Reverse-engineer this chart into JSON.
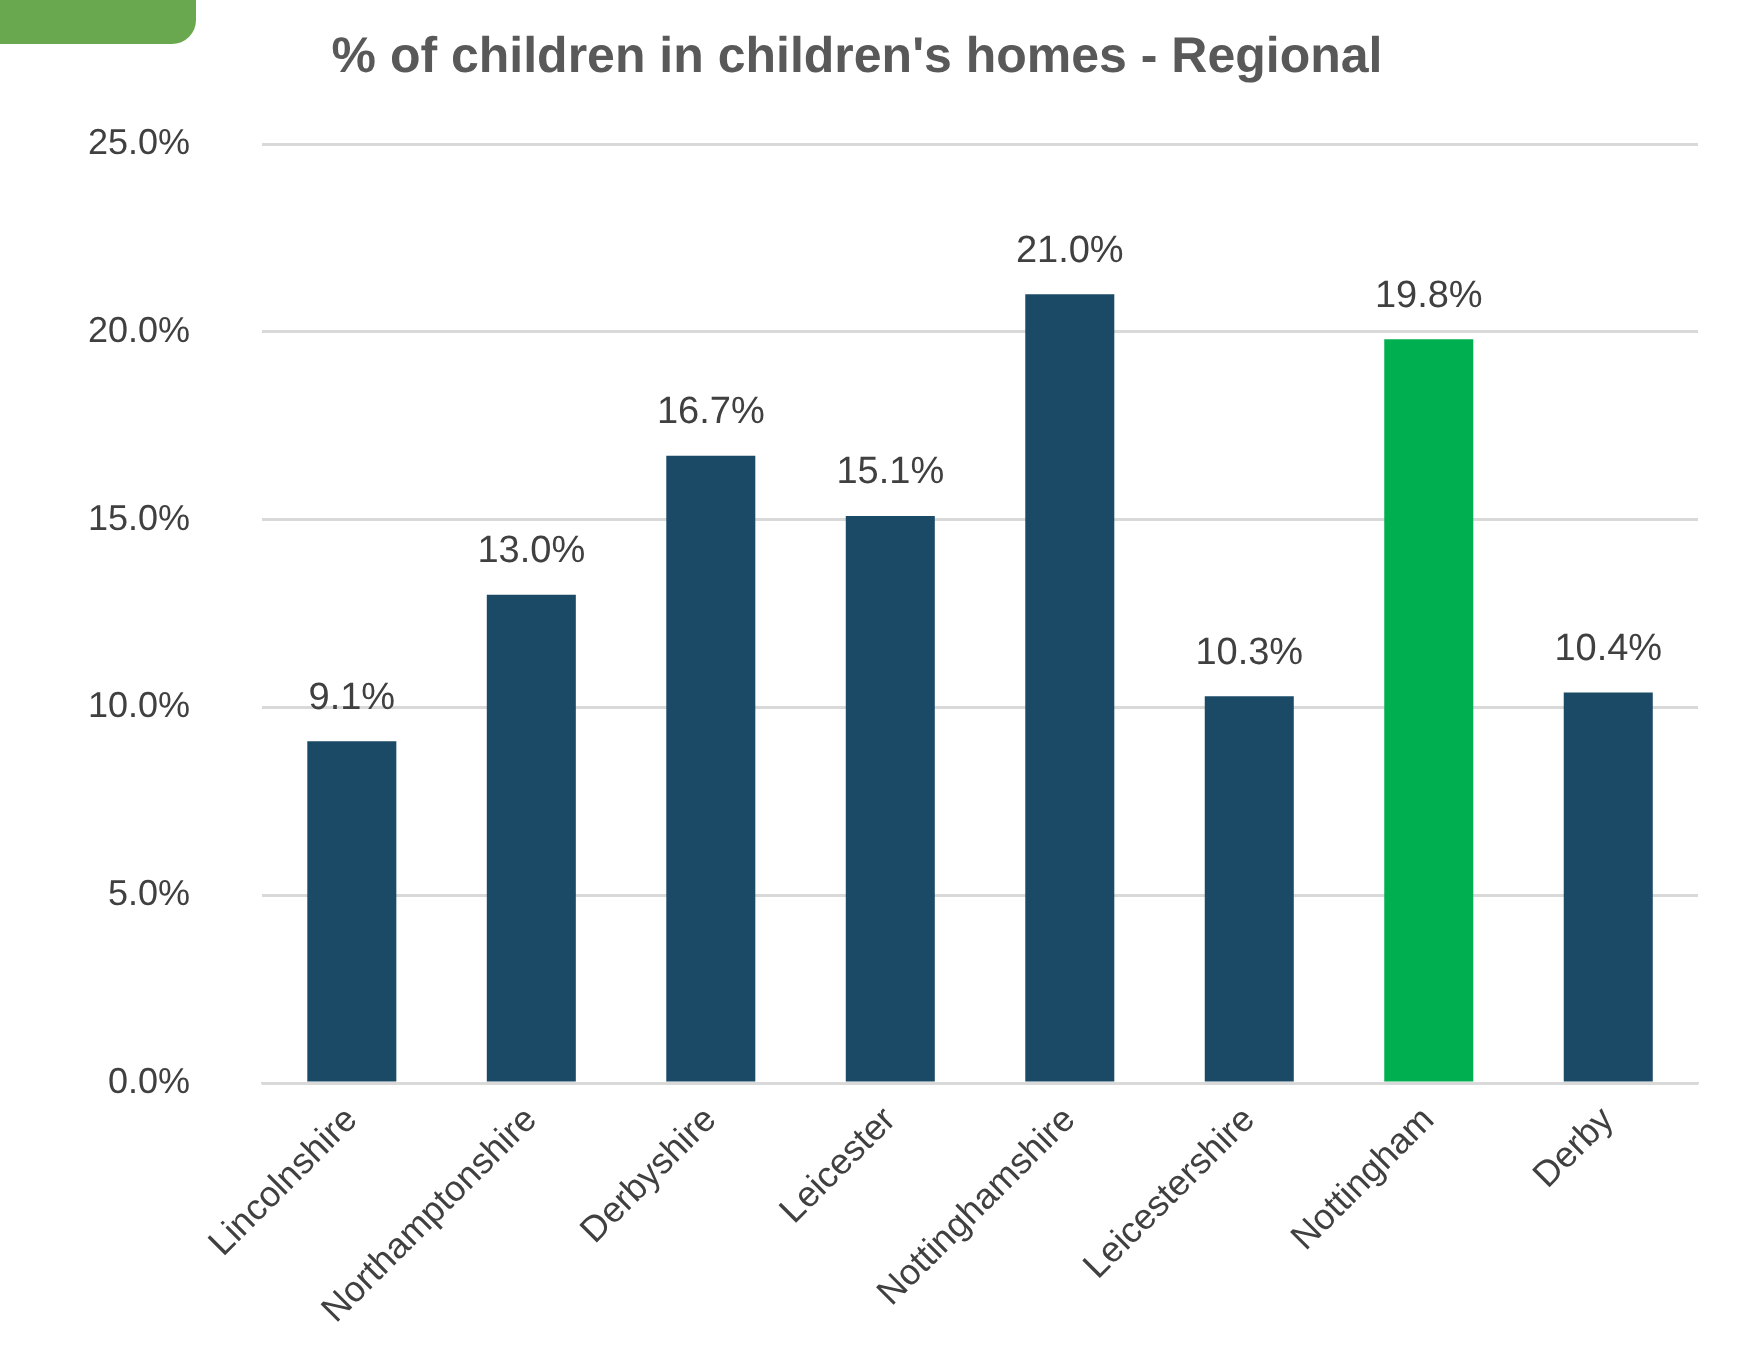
{
  "chart_data": {
    "type": "bar",
    "title": "% of children in children's homes - Regional",
    "categories": [
      "Lincolnshire",
      "Northamptonshire",
      "Derbyshire",
      "Leicester",
      "Nottinghamshire",
      "Leicestershire",
      "Nottingham",
      "Derby"
    ],
    "values": [
      9.1,
      13.0,
      16.7,
      15.1,
      21.0,
      10.3,
      19.8,
      10.4
    ],
    "colors": [
      "#1a4a66",
      "#1a4a66",
      "#1a4a66",
      "#1a4a66",
      "#1a4a66",
      "#1a4a66",
      "#00b050",
      "#1a4a66"
    ],
    "value_labels": [
      "9.1%",
      "13.0%",
      "16.7%",
      "15.1%",
      "21.0%",
      "10.3%",
      "19.8%",
      "10.4%"
    ],
    "ylim": [
      0,
      25
    ],
    "yticks": [
      {
        "value": 0,
        "label": "0.0%"
      },
      {
        "value": 5,
        "label": "5.0%"
      },
      {
        "value": 10,
        "label": "10.0%"
      },
      {
        "value": 15,
        "label": "15.0%"
      },
      {
        "value": 20,
        "label": "20.0%"
      },
      {
        "value": 25,
        "label": "25.0%"
      }
    ],
    "grid": "y",
    "legend": false
  }
}
